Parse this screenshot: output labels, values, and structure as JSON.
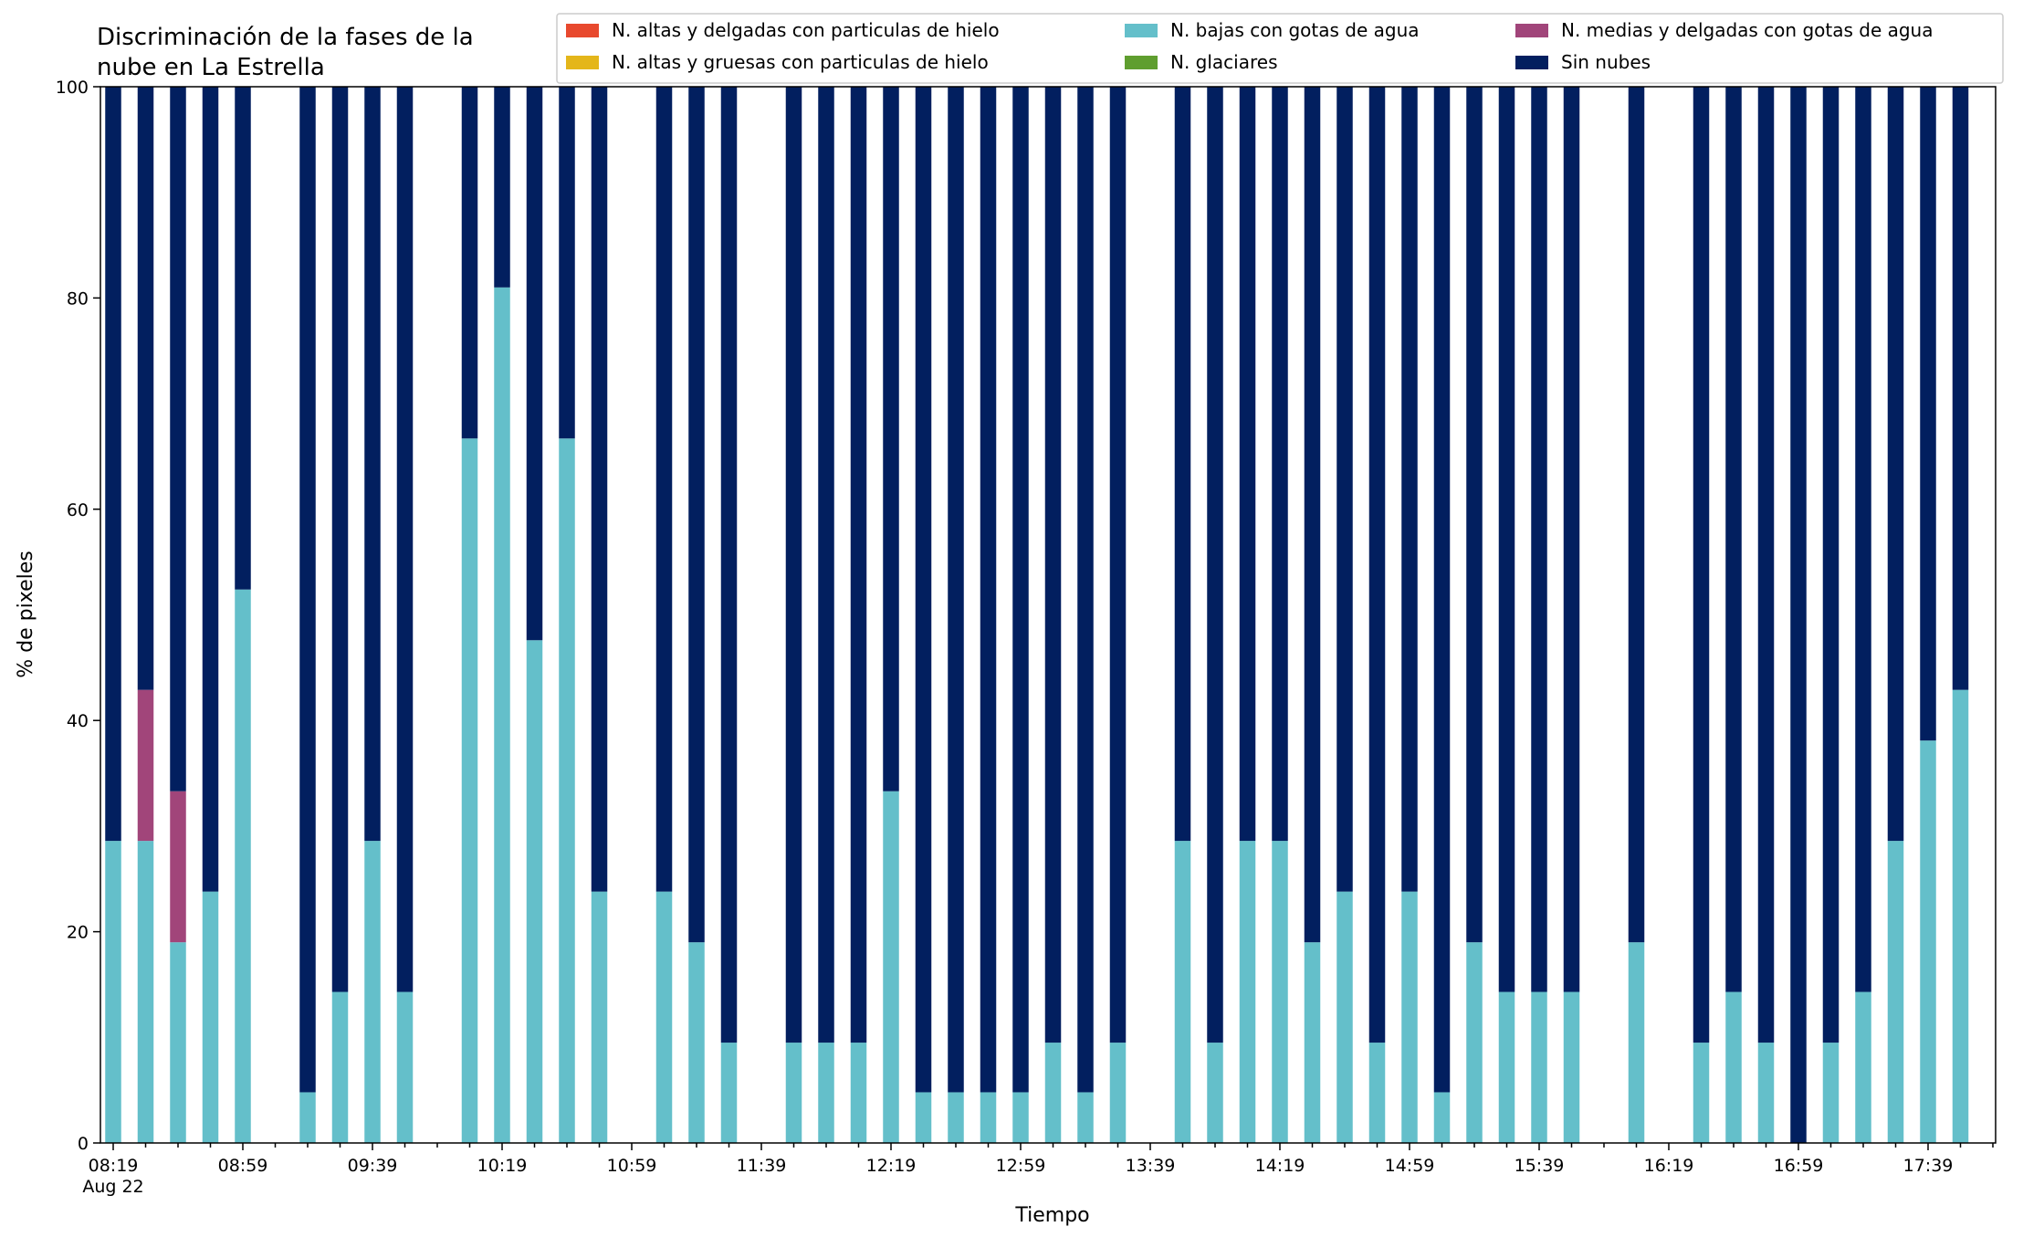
{
  "chart_data": {
    "type": "bar",
    "stacked": true,
    "title_lines": [
      "Discriminación de la fases de la",
      "nube en La Estrella"
    ],
    "xlabel": "Tiempo",
    "ylabel": "% de pixeles",
    "ylim": [
      0,
      100
    ],
    "yticks": [
      0,
      20,
      40,
      60,
      80,
      100
    ],
    "grid": false,
    "legend_position": "top-right",
    "x_tick_labels": [
      "08:19",
      "08:59",
      "09:39",
      "10:19",
      "10:59",
      "11:39",
      "12:19",
      "12:59",
      "13:39",
      "14:19",
      "14:59",
      "15:39",
      "16:19",
      "16:59",
      "17:39"
    ],
    "x_date_label": "Aug 22",
    "x_start": "08:19",
    "x_end": "17:49",
    "bar_interval_minutes": 10,
    "categories": [
      "08:19",
      "08:29",
      "08:39",
      "08:49",
      "08:59",
      "09:09",
      "09:19",
      "09:29",
      "09:39",
      "09:49",
      "09:59",
      "10:09",
      "10:19",
      "10:29",
      "10:39",
      "10:49",
      "10:59",
      "11:09",
      "11:19",
      "11:29",
      "11:39",
      "11:49",
      "11:59",
      "12:09",
      "12:19",
      "12:29",
      "12:39",
      "12:49",
      "12:59",
      "13:09",
      "13:19",
      "13:29",
      "13:39",
      "13:49",
      "13:59",
      "14:09",
      "14:19",
      "14:29",
      "14:39",
      "14:49",
      "14:59",
      "15:09",
      "15:19",
      "15:29",
      "15:39",
      "15:49",
      "15:59",
      "16:09",
      "16:19",
      "16:29",
      "16:39",
      "16:49",
      "16:59",
      "17:09",
      "17:19",
      "17:29",
      "17:39",
      "17:49"
    ],
    "series": [
      {
        "name": "N. altas y delgadas con particulas de hielo",
        "color": "#e8492e",
        "values": [
          0,
          0,
          0,
          0,
          0,
          null,
          0,
          0,
          0,
          0,
          null,
          0,
          0,
          0,
          0,
          0,
          null,
          0,
          0,
          0,
          null,
          0,
          0,
          0,
          0,
          0,
          0,
          0,
          0,
          0,
          0,
          0,
          null,
          0,
          0,
          0,
          0,
          0,
          0,
          0,
          0,
          0,
          0,
          0,
          0,
          0,
          0,
          null,
          0,
          null,
          0,
          0,
          0,
          0,
          0,
          0,
          0,
          0
        ]
      },
      {
        "name": "N. altas y gruesas con particulas de hielo",
        "color": "#e4b61a",
        "values": [
          0,
          0,
          0,
          0,
          0,
          null,
          0,
          0,
          0,
          0,
          null,
          0,
          0,
          0,
          0,
          0,
          null,
          0,
          0,
          0,
          null,
          0,
          0,
          0,
          0,
          0,
          0,
          0,
          0,
          0,
          0,
          0,
          null,
          0,
          0,
          0,
          0,
          0,
          0,
          0,
          0,
          0,
          0,
          0,
          0,
          0,
          0,
          null,
          0,
          null,
          0,
          0,
          0,
          0,
          0,
          0,
          0,
          0
        ]
      },
      {
        "name": "N. bajas con gotas de agua",
        "color": "#64bfca",
        "values": [
          28.6,
          28.6,
          19.0,
          23.8,
          52.4,
          null,
          4.8,
          14.3,
          28.6,
          14.3,
          null,
          66.7,
          81.0,
          47.6,
          66.7,
          23.8,
          null,
          23.8,
          19.0,
          9.5,
          null,
          9.5,
          9.5,
          9.5,
          33.3,
          4.8,
          4.8,
          4.8,
          4.8,
          9.5,
          4.8,
          9.5,
          null,
          28.6,
          9.5,
          28.6,
          28.6,
          19.0,
          23.8,
          9.5,
          23.8,
          4.8,
          19.0,
          14.3,
          14.3,
          14.3,
          null,
          19.0,
          null,
          9.5,
          14.3,
          9.5,
          0,
          9.5,
          14.3,
          28.6,
          38.1,
          42.9
        ]
      },
      {
        "name": "N. glaciares",
        "color": "#5f9e2f",
        "values": [
          0,
          0,
          0,
          0,
          0,
          null,
          0,
          0,
          0,
          0,
          null,
          0,
          0,
          0,
          0,
          0,
          null,
          0,
          0,
          0,
          null,
          0,
          0,
          0,
          0,
          0,
          0,
          0,
          0,
          0,
          0,
          0,
          null,
          0,
          0,
          0,
          0,
          0,
          0,
          0,
          0,
          0,
          0,
          0,
          0,
          0,
          0,
          null,
          0,
          null,
          0,
          0,
          0,
          0,
          0,
          0,
          0,
          0
        ]
      },
      {
        "name": "N. medias y delgadas con gotas de agua",
        "color": "#a1457a",
        "values": [
          0,
          14.3,
          14.3,
          0,
          0,
          null,
          0,
          0,
          0,
          0,
          null,
          0,
          0,
          0,
          0,
          0,
          null,
          0,
          0,
          0,
          null,
          0,
          0,
          0,
          0,
          0,
          0,
          0,
          0,
          0,
          0,
          0,
          null,
          0,
          0,
          0,
          0,
          0,
          0,
          0,
          0,
          0,
          0,
          0,
          0,
          0,
          0,
          null,
          0,
          null,
          0,
          0,
          0,
          0,
          0,
          0,
          0,
          0
        ]
      },
      {
        "name": "Sin nubes",
        "color": "#021f5f",
        "values": [
          71.4,
          57.1,
          66.7,
          76.2,
          47.6,
          null,
          95.2,
          85.7,
          71.4,
          85.7,
          null,
          33.3,
          19.0,
          52.4,
          33.3,
          76.2,
          null,
          76.2,
          81.0,
          90.5,
          null,
          90.5,
          90.5,
          90.5,
          66.7,
          95.2,
          95.2,
          95.2,
          95.2,
          90.5,
          95.2,
          90.5,
          null,
          71.4,
          90.5,
          71.4,
          71.4,
          81.0,
          76.2,
          90.5,
          76.2,
          95.2,
          81.0,
          85.7,
          85.7,
          85.7,
          null,
          81.0,
          null,
          90.5,
          85.7,
          90.5,
          100,
          90.5,
          85.7,
          71.4,
          61.9,
          57.1
        ]
      }
    ]
  }
}
